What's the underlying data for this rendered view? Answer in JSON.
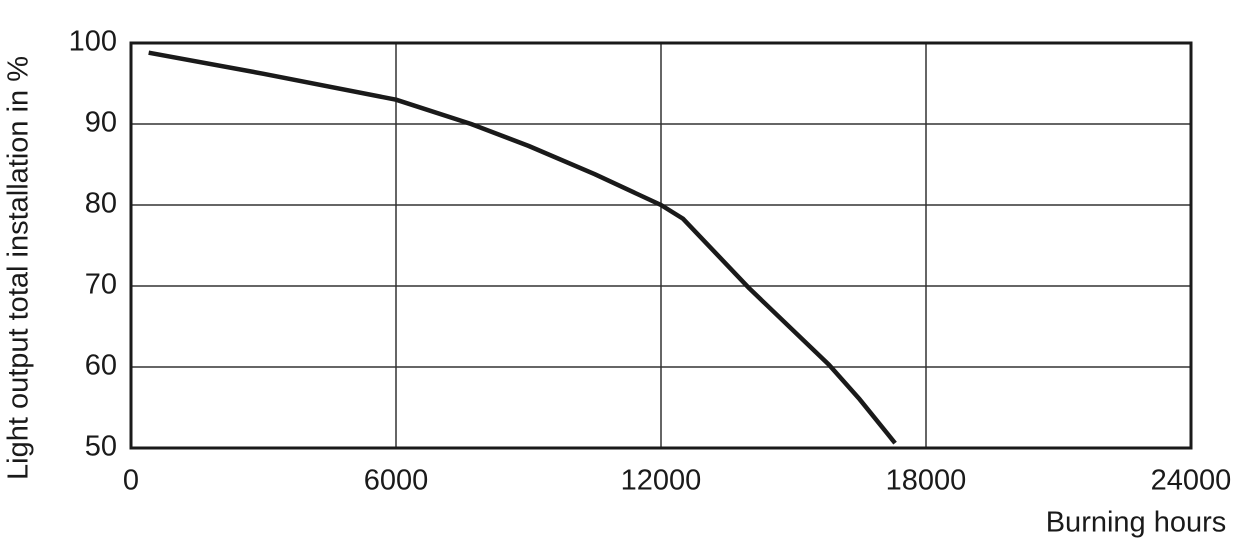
{
  "chart_data": {
    "type": "line",
    "x_label": "Burning hours",
    "y_label": "Light output total installation in %",
    "series": [
      {
        "name": "Light output",
        "color": "#1a1a1a",
        "x": [
          400,
          3000,
          6000,
          7700,
          9000,
          10500,
          12000,
          12500,
          14000,
          15800,
          16500,
          17300
        ],
        "values": [
          98.8,
          96.2,
          93,
          90,
          87.3,
          83.8,
          80,
          78.3,
          69.7,
          60.3,
          56,
          50.6
        ]
      }
    ],
    "xlim": [
      0,
      24000
    ],
    "xticks": [
      0,
      6000,
      12000,
      18000,
      24000
    ],
    "ylim": [
      50,
      100
    ],
    "yticks": [
      50,
      60,
      70,
      80,
      90,
      100
    ],
    "grid": true
  }
}
